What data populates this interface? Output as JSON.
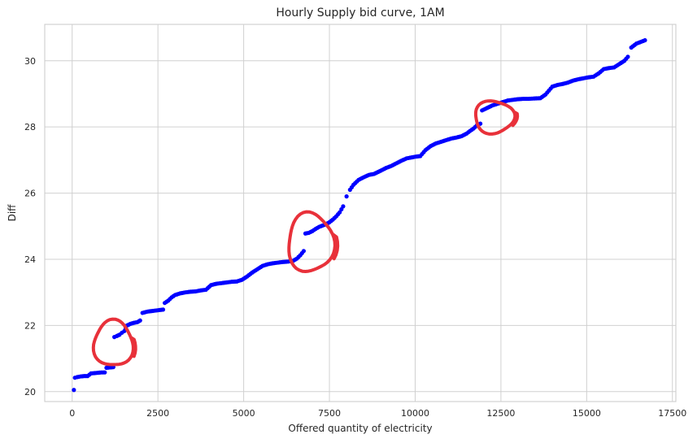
{
  "chart_data": {
    "type": "scatter",
    "title": "Hourly Supply bid curve, 1AM",
    "xlabel": "Offered quantity of electricity",
    "ylabel": "Diff",
    "xlim": [
      -800,
      17600
    ],
    "ylim": [
      19.7,
      31.1
    ],
    "xticks": [
      0,
      2500,
      5000,
      7500,
      10000,
      12500,
      15000,
      17500
    ],
    "yticks": [
      20,
      22,
      24,
      26,
      28,
      30
    ],
    "grid": true,
    "marker_color": "#0000ff",
    "points": [
      [
        50,
        20.05
      ],
      [
        80,
        20.42
      ],
      [
        150,
        20.44
      ],
      [
        250,
        20.46
      ],
      [
        350,
        20.47
      ],
      [
        450,
        20.47
      ],
      [
        550,
        20.55
      ],
      [
        650,
        20.56
      ],
      [
        750,
        20.57
      ],
      [
        850,
        20.58
      ],
      [
        950,
        20.58
      ],
      [
        1000,
        20.72
      ],
      [
        1100,
        20.73
      ],
      [
        1200,
        20.74
      ],
      [
        1230,
        21.65
      ],
      [
        1300,
        21.68
      ],
      [
        1380,
        21.72
      ],
      [
        1450,
        21.78
      ],
      [
        1520,
        21.83
      ],
      [
        1600,
        22.0
      ],
      [
        1700,
        22.05
      ],
      [
        1800,
        22.08
      ],
      [
        1900,
        22.1
      ],
      [
        1980,
        22.15
      ],
      [
        2050,
        22.38
      ],
      [
        2200,
        22.42
      ],
      [
        2350,
        22.44
      ],
      [
        2500,
        22.46
      ],
      [
        2650,
        22.48
      ],
      [
        2700,
        22.68
      ],
      [
        2800,
        22.75
      ],
      [
        2900,
        22.85
      ],
      [
        3000,
        22.92
      ],
      [
        3150,
        22.97
      ],
      [
        3300,
        23.0
      ],
      [
        3450,
        23.02
      ],
      [
        3600,
        23.03
      ],
      [
        3750,
        23.06
      ],
      [
        3900,
        23.08
      ],
      [
        4050,
        23.22
      ],
      [
        4200,
        23.26
      ],
      [
        4350,
        23.28
      ],
      [
        4500,
        23.3
      ],
      [
        4650,
        23.32
      ],
      [
        4800,
        23.33
      ],
      [
        4950,
        23.38
      ],
      [
        5100,
        23.48
      ],
      [
        5250,
        23.6
      ],
      [
        5400,
        23.7
      ],
      [
        5550,
        23.8
      ],
      [
        5700,
        23.85
      ],
      [
        5850,
        23.88
      ],
      [
        6000,
        23.9
      ],
      [
        6150,
        23.92
      ],
      [
        6300,
        23.93
      ],
      [
        6450,
        23.96
      ],
      [
        6550,
        24.02
      ],
      [
        6650,
        24.12
      ],
      [
        6750,
        24.25
      ],
      [
        6800,
        24.78
      ],
      [
        6900,
        24.8
      ],
      [
        7000,
        24.85
      ],
      [
        7100,
        24.92
      ],
      [
        7200,
        24.98
      ],
      [
        7300,
        25.02
      ],
      [
        7400,
        25.06
      ],
      [
        7500,
        25.12
      ],
      [
        7600,
        25.2
      ],
      [
        7700,
        25.3
      ],
      [
        7800,
        25.42
      ],
      [
        7900,
        25.6
      ],
      [
        8000,
        25.9
      ],
      [
        8100,
        26.1
      ],
      [
        8200,
        26.25
      ],
      [
        8350,
        26.4
      ],
      [
        8500,
        26.48
      ],
      [
        8650,
        26.55
      ],
      [
        8800,
        26.58
      ],
      [
        9000,
        26.68
      ],
      [
        9150,
        26.76
      ],
      [
        9300,
        26.82
      ],
      [
        9450,
        26.9
      ],
      [
        9600,
        26.98
      ],
      [
        9750,
        27.05
      ],
      [
        9900,
        27.08
      ],
      [
        10000,
        27.1
      ],
      [
        10150,
        27.12
      ],
      [
        10300,
        27.3
      ],
      [
        10450,
        27.42
      ],
      [
        10600,
        27.5
      ],
      [
        10750,
        27.55
      ],
      [
        10900,
        27.6
      ],
      [
        11050,
        27.65
      ],
      [
        11200,
        27.68
      ],
      [
        11350,
        27.72
      ],
      [
        11500,
        27.8
      ],
      [
        11600,
        27.88
      ],
      [
        11700,
        27.95
      ],
      [
        11800,
        28.05
      ],
      [
        11900,
        28.1
      ],
      [
        11950,
        28.5
      ],
      [
        12050,
        28.55
      ],
      [
        12150,
        28.6
      ],
      [
        12250,
        28.65
      ],
      [
        12400,
        28.7
      ],
      [
        12550,
        28.75
      ],
      [
        12700,
        28.8
      ],
      [
        12850,
        28.82
      ],
      [
        13000,
        28.84
      ],
      [
        13150,
        28.85
      ],
      [
        13300,
        28.85
      ],
      [
        13450,
        28.86
      ],
      [
        13650,
        28.87
      ],
      [
        13800,
        28.98
      ],
      [
        13900,
        29.1
      ],
      [
        14000,
        29.22
      ],
      [
        14150,
        29.27
      ],
      [
        14300,
        29.3
      ],
      [
        14450,
        29.34
      ],
      [
        14600,
        29.4
      ],
      [
        14750,
        29.44
      ],
      [
        14900,
        29.47
      ],
      [
        15050,
        29.5
      ],
      [
        15200,
        29.52
      ],
      [
        15350,
        29.62
      ],
      [
        15500,
        29.75
      ],
      [
        15650,
        29.78
      ],
      [
        15800,
        29.8
      ],
      [
        15950,
        29.9
      ],
      [
        16100,
        30.0
      ],
      [
        16200,
        30.12
      ],
      [
        16300,
        30.4
      ],
      [
        16450,
        30.52
      ],
      [
        16600,
        30.58
      ],
      [
        16700,
        30.62
      ]
    ],
    "annotations": [
      {
        "shape": "freehand-circle",
        "color": "#e8313a",
        "center": [
          1200,
          21.45
        ]
      },
      {
        "shape": "freehand-circle",
        "color": "#e8313a",
        "center": [
          6950,
          24.5
        ]
      },
      {
        "shape": "freehand-circle",
        "color": "#e8313a",
        "center": [
          12300,
          28.3
        ]
      }
    ]
  }
}
